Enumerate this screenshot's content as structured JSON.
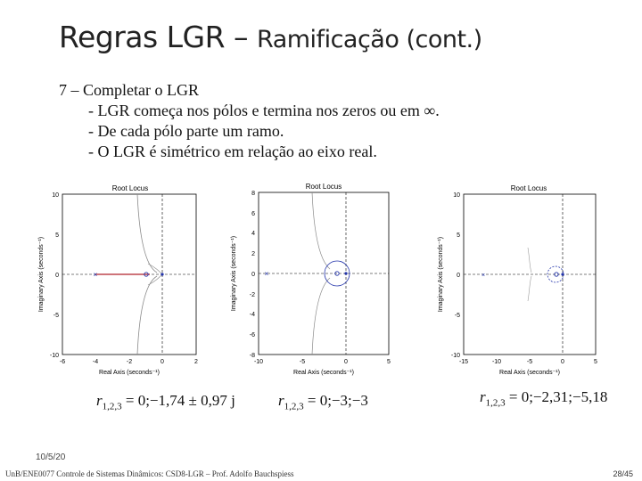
{
  "title": {
    "part1": "Regras LGR – ",
    "part2": "Ramificação (cont.)"
  },
  "bullets": {
    "heading": "7 – Completar o LGR",
    "items": [
      "- LGR começa nos pólos e termina nos zeros ou em ∞.",
      "- De cada pólo parte um ramo.",
      "- O LGR é simétrico em relação ao eixo real."
    ]
  },
  "plots": [
    {
      "title": "Root Locus",
      "xlabel": "Real Axis (seconds⁻¹)",
      "ylabel": "Imaginary Axis (seconds⁻¹)",
      "xticks": [
        "-6",
        "-4",
        "-2",
        "0",
        "2"
      ],
      "yticks": [
        "10",
        "5",
        "0",
        "-5",
        "-10"
      ],
      "formula": {
        "lhs": "r",
        "sub": "1,2,3",
        "rhs": " = 0;−1,74 ± 0,97 j"
      }
    },
    {
      "title": "Root Locus",
      "xlabel": "Real Axis (seconds⁻¹)",
      "ylabel": "Imaginary Axis (seconds⁻¹)",
      "xticks": [
        "-10",
        "-5",
        "0",
        "5"
      ],
      "yticks": [
        "8",
        "6",
        "4",
        "2",
        "0",
        "-2",
        "-4",
        "-6",
        "-8"
      ],
      "formula": {
        "lhs": "r",
        "sub": "1,2,3",
        "rhs": " = 0;−3;−3"
      }
    },
    {
      "title": "Root Locus",
      "xlabel": "Real Axis (seconds⁻¹)",
      "ylabel": "Imaginary Axis (seconds⁻¹)",
      "xticks": [
        "-15",
        "-10",
        "-5",
        "0",
        "5"
      ],
      "yticks": [
        "10",
        "5",
        "0",
        "-5",
        "-10"
      ],
      "formula": {
        "lhs": "r",
        "sub": "1,2,3",
        "rhs": " = 0;−2,31;−5,18"
      }
    }
  ],
  "footer": {
    "date": "10/5/20",
    "text": "UnB/ENE0077 Controle de Sistemas Dinâmicos: CSD8-LGR – Prof. Adolfo Bauchspiess",
    "page": "28/45"
  },
  "colors": {
    "locus": "#8a8a8a",
    "branch": "#b0202a",
    "circle": "#2233aa",
    "axis": "#000000"
  }
}
